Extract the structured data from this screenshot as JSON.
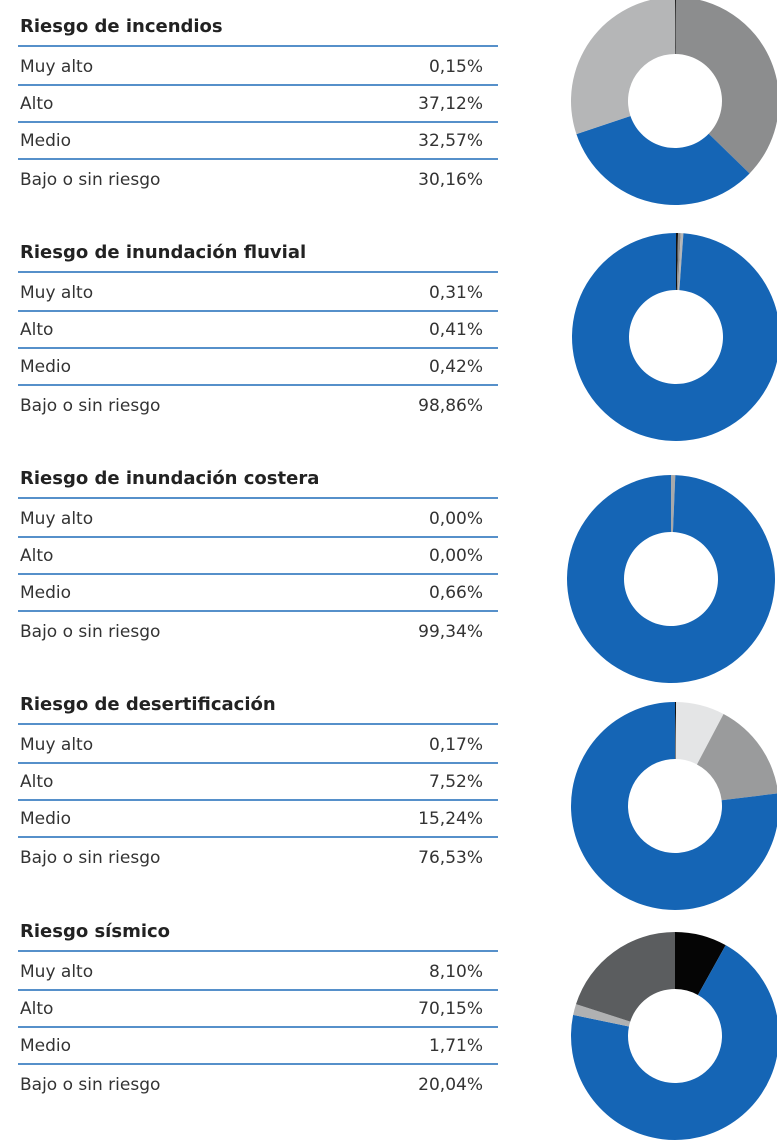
{
  "chart_data": [
    {
      "type": "donut",
      "title": "Riesgo de incendios",
      "categories": [
        "Muy alto",
        "Alto",
        "Medio",
        "Bajo o sin riesgo"
      ],
      "values": [
        0.15,
        37.12,
        32.57,
        30.16
      ],
      "value_labels": [
        "0,15%",
        "37,12%",
        "32,57%",
        "30,16%"
      ],
      "colors": [
        "#111111",
        "#8c8d8e",
        "#1565b5",
        "#b5b6b7"
      ]
    },
    {
      "type": "donut",
      "title": "Riesgo de inundación fluvial",
      "categories": [
        "Muy alto",
        "Alto",
        "Medio",
        "Bajo o sin riesgo"
      ],
      "values": [
        0.31,
        0.41,
        0.42,
        98.86
      ],
      "value_labels": [
        "0,31%",
        "0,41%",
        "0,42%",
        "98,86%"
      ],
      "colors": [
        "#111111",
        "#8c8d8e",
        "#b5b6b7",
        "#1565b5"
      ]
    },
    {
      "type": "donut",
      "title": "Riesgo de inundación costera",
      "categories": [
        "Muy alto",
        "Alto",
        "Medio",
        "Bajo o sin riesgo"
      ],
      "values": [
        0.0,
        0.0,
        0.66,
        99.34
      ],
      "value_labels": [
        "0,00%",
        "0,00%",
        "0,66%",
        "99,34%"
      ],
      "colors": [
        "#111111",
        "#8c8d8e",
        "#a8a9aa",
        "#1565b5"
      ]
    },
    {
      "type": "donut",
      "title": "Riesgo de desertificación",
      "categories": [
        "Muy alto",
        "Alto",
        "Medio",
        "Bajo o sin riesgo"
      ],
      "values": [
        0.17,
        7.52,
        15.24,
        76.53
      ],
      "value_labels": [
        "0,17%",
        "7,52%",
        "15,24%",
        "76,53%"
      ],
      "colors": [
        "#111111",
        "#e4e5e6",
        "#9a9b9c",
        "#1565b5"
      ]
    },
    {
      "type": "donut",
      "title": "Riesgo sísmico",
      "categories": [
        "Muy alto",
        "Alto",
        "Medio",
        "Bajo o sin riesgo"
      ],
      "values": [
        8.1,
        70.15,
        1.71,
        20.04
      ],
      "value_labels": [
        "8,10%",
        "70,15%",
        "1,71%",
        "20,04%"
      ],
      "colors": [
        "#050505",
        "#1565b5",
        "#b0b1b2",
        "#5b5d5f"
      ]
    }
  ]
}
